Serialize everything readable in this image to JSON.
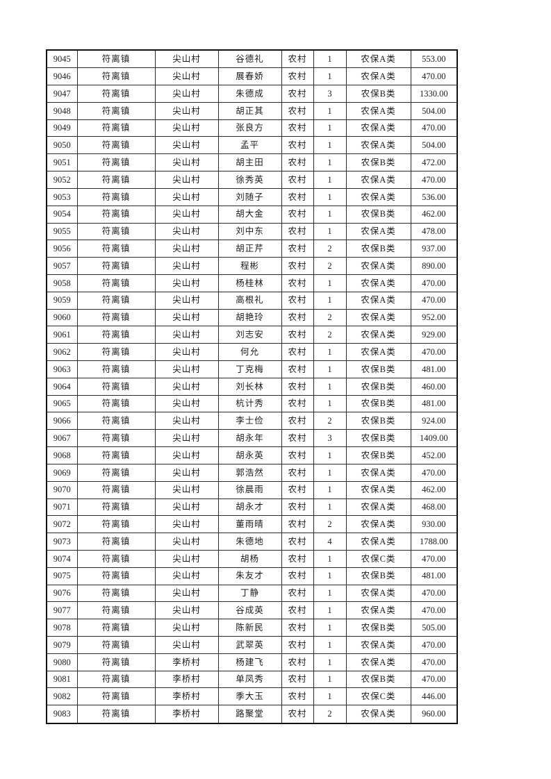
{
  "page": {
    "kind": "pension-roster-sheet"
  },
  "table": {
    "column_keys": [
      "serial",
      "town",
      "village",
      "name",
      "residence-type",
      "person-count",
      "category",
      "amount"
    ],
    "rows": [
      [
        "9045",
        "符离镇",
        "尖山村",
        "谷德礼",
        "农村",
        "1",
        "农保A类",
        "553.00"
      ],
      [
        "9046",
        "符离镇",
        "尖山村",
        "展春娇",
        "农村",
        "1",
        "农保A类",
        "470.00"
      ],
      [
        "9047",
        "符离镇",
        "尖山村",
        "朱德成",
        "农村",
        "3",
        "农保B类",
        "1330.00"
      ],
      [
        "9048",
        "符离镇",
        "尖山村",
        "胡正其",
        "农村",
        "1",
        "农保A类",
        "504.00"
      ],
      [
        "9049",
        "符离镇",
        "尖山村",
        "张良方",
        "农村",
        "1",
        "农保A类",
        "470.00"
      ],
      [
        "9050",
        "符离镇",
        "尖山村",
        "孟平",
        "农村",
        "1",
        "农保A类",
        "504.00"
      ],
      [
        "9051",
        "符离镇",
        "尖山村",
        "胡主田",
        "农村",
        "1",
        "农保B类",
        "472.00"
      ],
      [
        "9052",
        "符离镇",
        "尖山村",
        "徐秀英",
        "农村",
        "1",
        "农保A类",
        "470.00"
      ],
      [
        "9053",
        "符离镇",
        "尖山村",
        "刘随子",
        "农村",
        "1",
        "农保A类",
        "536.00"
      ],
      [
        "9054",
        "符离镇",
        "尖山村",
        "胡大金",
        "农村",
        "1",
        "农保B类",
        "462.00"
      ],
      [
        "9055",
        "符离镇",
        "尖山村",
        "刘中东",
        "农村",
        "1",
        "农保A类",
        "478.00"
      ],
      [
        "9056",
        "符离镇",
        "尖山村",
        "胡正芹",
        "农村",
        "2",
        "农保B类",
        "937.00"
      ],
      [
        "9057",
        "符离镇",
        "尖山村",
        "程彬",
        "农村",
        "2",
        "农保A类",
        "890.00"
      ],
      [
        "9058",
        "符离镇",
        "尖山村",
        "杨桂林",
        "农村",
        "1",
        "农保A类",
        "470.00"
      ],
      [
        "9059",
        "符离镇",
        "尖山村",
        "高根礼",
        "农村",
        "1",
        "农保A类",
        "470.00"
      ],
      [
        "9060",
        "符离镇",
        "尖山村",
        "胡艳玲",
        "农村",
        "2",
        "农保A类",
        "952.00"
      ],
      [
        "9061",
        "符离镇",
        "尖山村",
        "刘志安",
        "农村",
        "2",
        "农保A类",
        "929.00"
      ],
      [
        "9062",
        "符离镇",
        "尖山村",
        "何允",
        "农村",
        "1",
        "农保A类",
        "470.00"
      ],
      [
        "9063",
        "符离镇",
        "尖山村",
        "丁克梅",
        "农村",
        "1",
        "农保B类",
        "481.00"
      ],
      [
        "9064",
        "符离镇",
        "尖山村",
        "刘长林",
        "农村",
        "1",
        "农保B类",
        "460.00"
      ],
      [
        "9065",
        "符离镇",
        "尖山村",
        "杭计秀",
        "农村",
        "1",
        "农保B类",
        "481.00"
      ],
      [
        "9066",
        "符离镇",
        "尖山村",
        "李士俭",
        "农村",
        "2",
        "农保B类",
        "924.00"
      ],
      [
        "9067",
        "符离镇",
        "尖山村",
        "胡永年",
        "农村",
        "3",
        "农保B类",
        "1409.00"
      ],
      [
        "9068",
        "符离镇",
        "尖山村",
        "胡永英",
        "农村",
        "1",
        "农保B类",
        "452.00"
      ],
      [
        "9069",
        "符离镇",
        "尖山村",
        "郭浩然",
        "农村",
        "1",
        "农保A类",
        "470.00"
      ],
      [
        "9070",
        "符离镇",
        "尖山村",
        "徐晨雨",
        "农村",
        "1",
        "农保A类",
        "462.00"
      ],
      [
        "9071",
        "符离镇",
        "尖山村",
        "胡永才",
        "农村",
        "1",
        "农保A类",
        "468.00"
      ],
      [
        "9072",
        "符离镇",
        "尖山村",
        "董雨晴",
        "农村",
        "2",
        "农保A类",
        "930.00"
      ],
      [
        "9073",
        "符离镇",
        "尖山村",
        "朱德地",
        "农村",
        "4",
        "农保A类",
        "1788.00"
      ],
      [
        "9074",
        "符离镇",
        "尖山村",
        "胡杨",
        "农村",
        "1",
        "农保C类",
        "470.00"
      ],
      [
        "9075",
        "符离镇",
        "尖山村",
        "朱友才",
        "农村",
        "1",
        "农保B类",
        "481.00"
      ],
      [
        "9076",
        "符离镇",
        "尖山村",
        "丁静",
        "农村",
        "1",
        "农保A类",
        "470.00"
      ],
      [
        "9077",
        "符离镇",
        "尖山村",
        "谷成英",
        "农村",
        "1",
        "农保A类",
        "470.00"
      ],
      [
        "9078",
        "符离镇",
        "尖山村",
        "陈新民",
        "农村",
        "1",
        "农保B类",
        "505.00"
      ],
      [
        "9079",
        "符离镇",
        "尖山村",
        "武翠英",
        "农村",
        "1",
        "农保A类",
        "470.00"
      ],
      [
        "9080",
        "符离镇",
        "李桥村",
        "杨建飞",
        "农村",
        "1",
        "农保A类",
        "470.00"
      ],
      [
        "9081",
        "符离镇",
        "李桥村",
        "单凤秀",
        "农村",
        "1",
        "农保B类",
        "470.00"
      ],
      [
        "9082",
        "符离镇",
        "李桥村",
        "季大玉",
        "农村",
        "1",
        "农保C类",
        "446.00"
      ],
      [
        "9083",
        "符离镇",
        "李桥村",
        "路聚堂",
        "农村",
        "2",
        "农保A类",
        "960.00"
      ]
    ]
  }
}
